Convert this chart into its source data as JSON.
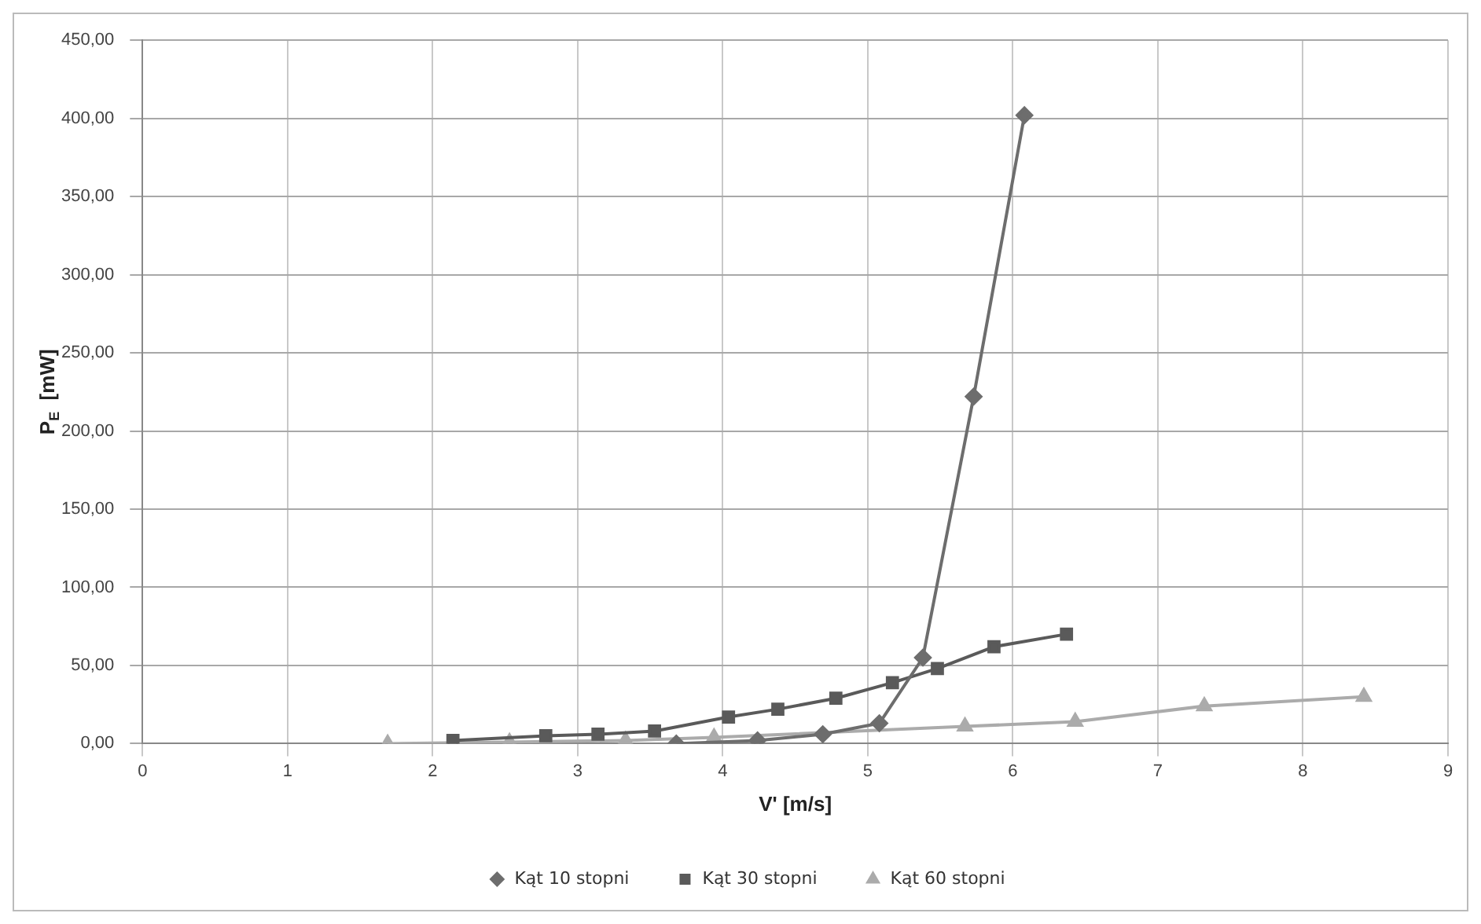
{
  "chart_data": {
    "type": "line",
    "xlabel": "V' [m/s]",
    "ylabel": "P$_{E}$  [mW]",
    "xlim": [
      0,
      9
    ],
    "xticks": [
      0,
      1,
      2,
      3,
      4,
      5,
      6,
      7,
      8,
      9
    ],
    "ylim": [
      0,
      450
    ],
    "yticks": [
      {
        "value": 0,
        "label": "0,00"
      },
      {
        "value": 50,
        "label": "50,00"
      },
      {
        "value": 100,
        "label": "100,00"
      },
      {
        "value": 150,
        "label": "150,00"
      },
      {
        "value": 200,
        "label": "200,00"
      },
      {
        "value": 250,
        "label": "250,00"
      },
      {
        "value": 300,
        "label": "300,00"
      },
      {
        "value": 350,
        "label": "350,00"
      },
      {
        "value": 400,
        "label": "400,00"
      },
      {
        "value": 450,
        "label": "450,00"
      }
    ],
    "grid": true,
    "legend": "bottom",
    "series": [
      {
        "name": "Kąt 10 stopni",
        "color": "#6d6d6d",
        "marker": "diamond",
        "x": [
          3.68,
          4.24,
          4.69,
          5.08,
          5.38,
          5.73,
          6.08
        ],
        "values": [
          0,
          2,
          6,
          13,
          55,
          222,
          402
        ]
      },
      {
        "name": "Kąt 30 stopni",
        "color": "#5a5a5a",
        "marker": "square",
        "x": [
          2.14,
          2.78,
          3.14,
          3.53,
          4.04,
          4.38,
          4.78,
          5.17,
          5.48,
          5.87,
          6.37
        ],
        "values": [
          2,
          5,
          6,
          8,
          17,
          22,
          29,
          39,
          48,
          62,
          70
        ]
      },
      {
        "name": "Kąt 60 stopni",
        "color": "#ababab",
        "marker": "triangle",
        "x": [
          1.69,
          2.53,
          3.33,
          3.94,
          5.67,
          6.43,
          7.32,
          8.42
        ],
        "values": [
          0,
          1,
          2,
          4,
          11,
          14,
          24,
          30
        ]
      }
    ]
  }
}
